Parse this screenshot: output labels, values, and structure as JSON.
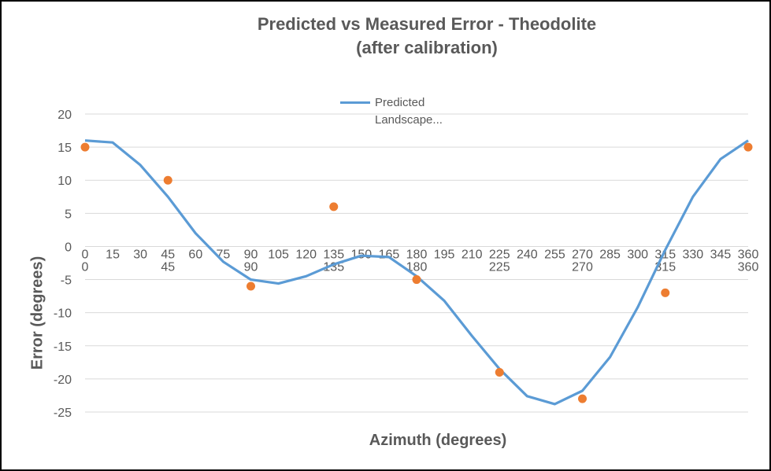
{
  "chart_data": {
    "type": "line",
    "title": [
      "Predicted vs Measured Error - Theodolite",
      "(after calibration)"
    ],
    "xlabel": "Azimuth (degrees)",
    "ylabel": "Error (degrees)",
    "ylim": [
      -25,
      20
    ],
    "y_ticks": [
      20,
      15,
      10,
      5,
      0,
      -5,
      -10,
      -15,
      -20,
      -25
    ],
    "grid": "horizontal",
    "legend_position": "top-center",
    "legend_entries": [
      "Predicted Landscape..."
    ],
    "series": [
      {
        "name": "Predicted Landscape...",
        "type": "line",
        "color": "#5b9bd5",
        "x": [
          0,
          15,
          30,
          45,
          60,
          75,
          90,
          105,
          120,
          135,
          150,
          165,
          180,
          195,
          210,
          225,
          240,
          255,
          270,
          285,
          300,
          315,
          330,
          345,
          360
        ],
        "y": [
          16,
          15.7,
          12.3,
          7.5,
          2,
          -2.3,
          -5,
          -5.6,
          -4.5,
          -2.7,
          -1.4,
          -1.6,
          -4.5,
          -8.2,
          -13.5,
          -18.5,
          -22.6,
          -23.8,
          -21.8,
          -16.7,
          -9.2,
          -0.5,
          7.5,
          13.2,
          16
        ]
      },
      {
        "type": "scatter",
        "color": "#ed7d31",
        "x": [
          0,
          45,
          90,
          135,
          180,
          225,
          270,
          315,
          360
        ],
        "y": [
          15,
          10,
          -6,
          6,
          -5,
          -19,
          -23,
          -7,
          15
        ]
      }
    ]
  }
}
